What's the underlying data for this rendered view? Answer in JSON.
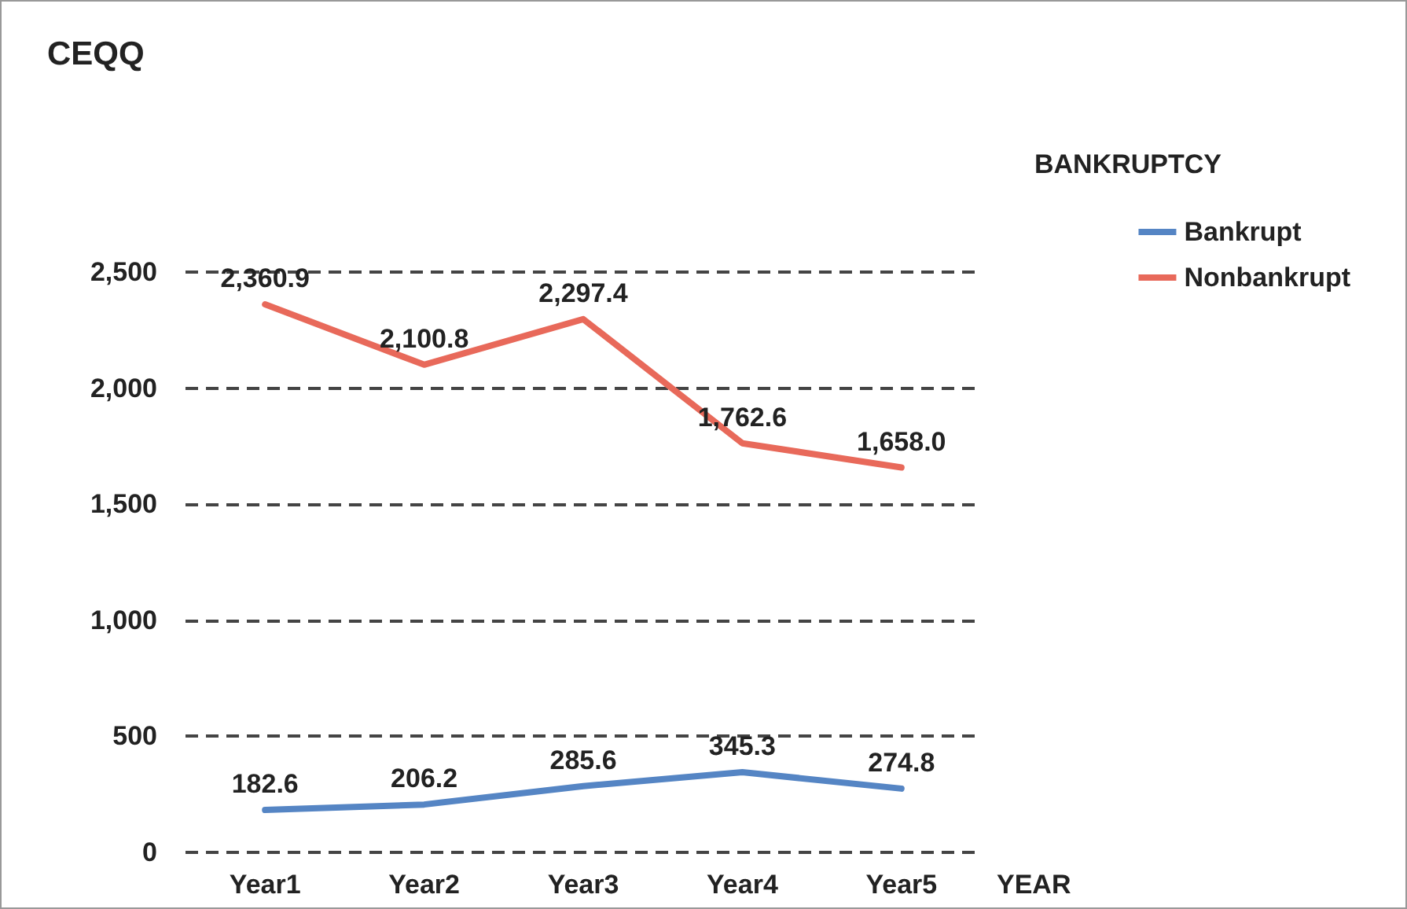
{
  "chart_data": {
    "type": "line",
    "title": "CEQQ",
    "xlabel": "YEAR",
    "legend_title": "BANKRUPTCY",
    "categories": [
      "Year1",
      "Year2",
      "Year3",
      "Year4",
      "Year5"
    ],
    "series": [
      {
        "name": "Bankrupt",
        "color": "#5585c4",
        "values": [
          182.6,
          206.2,
          285.6,
          345.3,
          274.8
        ],
        "value_labels": [
          "182.6",
          "206.2",
          "285.6",
          "345.3",
          "274.8"
        ]
      },
      {
        "name": "Nonbankrupt",
        "color": "#e8695a",
        "values": [
          2360.9,
          2100.8,
          2297.4,
          1762.6,
          1658.0
        ],
        "value_labels": [
          "2,360.9",
          "2,100.8",
          "2,297.4",
          "1,762.6",
          "1,658.0"
        ]
      }
    ],
    "ylim": [
      0,
      2500
    ],
    "yticks": [
      0,
      500,
      {
        "value": 1000,
        "label": "1,000"
      },
      {
        "value": 1500,
        "label": "1,500"
      },
      {
        "value": 2000,
        "label": "2,000"
      },
      {
        "value": 2500,
        "label": "2,500"
      }
    ],
    "grid": "y",
    "legend": "top right",
    "marker": "none",
    "line_style": "solid"
  }
}
